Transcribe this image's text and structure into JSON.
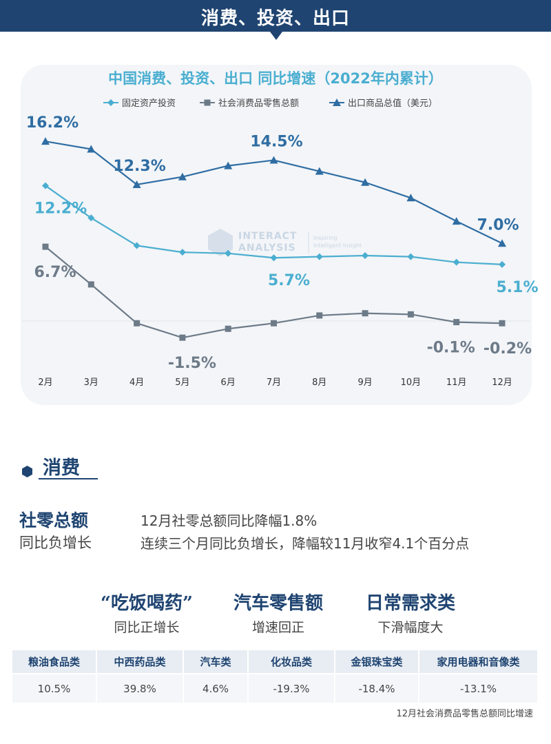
{
  "header": {
    "title": "消费、投资、出口"
  },
  "chart_data": {
    "type": "line",
    "title": "中国消费、投资、出口 同比增速（2022年内累计）",
    "categories": [
      "2月",
      "3月",
      "4月",
      "5月",
      "6月",
      "7月",
      "8月",
      "9月",
      "10月",
      "11月",
      "12月"
    ],
    "ylim": [
      -3,
      18
    ],
    "legend_position": "top",
    "grid": false,
    "series": [
      {
        "name": "固定资产投资",
        "color": "#4aaed0",
        "marker": "diamond",
        "values": [
          12.2,
          9.3,
          6.8,
          6.2,
          6.1,
          5.7,
          5.8,
          5.9,
          5.8,
          5.3,
          5.1
        ]
      },
      {
        "name": "社会消费品零售总额",
        "color": "#6d7a88",
        "marker": "square",
        "values": [
          6.7,
          3.3,
          -0.2,
          -1.5,
          -0.7,
          -0.2,
          0.5,
          0.7,
          0.6,
          -0.1,
          -0.2
        ]
      },
      {
        "name": "出口商品总值（美元）",
        "color": "#2f6da3",
        "marker": "triangle",
        "values": [
          16.2,
          15.5,
          12.3,
          13.0,
          14.0,
          14.5,
          13.5,
          12.5,
          11.1,
          9.0,
          7.0
        ]
      }
    ],
    "data_labels": [
      {
        "series": 2,
        "index": 0,
        "text": "16.2%"
      },
      {
        "series": 2,
        "index": 2,
        "text": "12.3%"
      },
      {
        "series": 2,
        "index": 5,
        "text": "14.5%"
      },
      {
        "series": 2,
        "index": 10,
        "text": "7.0%"
      },
      {
        "series": 0,
        "index": 0,
        "text": "12.2%"
      },
      {
        "series": 0,
        "index": 5,
        "text": "5.7%"
      },
      {
        "series": 0,
        "index": 10,
        "text": "5.1%"
      },
      {
        "series": 1,
        "index": 0,
        "text": "6.7%"
      },
      {
        "series": 1,
        "index": 3,
        "text": "-1.5%"
      },
      {
        "series": 1,
        "index": 9,
        "text": "-0.1%"
      },
      {
        "series": 1,
        "index": 10,
        "text": "-0.2%"
      }
    ],
    "watermark": {
      "line1": "INTERACT",
      "line2": "ANALYSIS",
      "tagline1": "Inspiring",
      "tagline2": "Intelligent Insight"
    }
  },
  "section": {
    "title": "消费"
  },
  "retail": {
    "heading": "社零总额",
    "subheading": "同比负增长",
    "note1": "12月社零总额同比降幅1.8%",
    "note2": "连续三个月同比负增长，降幅较11月收窄4.1个百分点"
  },
  "highlights": [
    {
      "title": "“吃饭喝药”",
      "sub": "同比正增长"
    },
    {
      "title": "汽车零售额",
      "sub": "增速回正"
    },
    {
      "title": "日常需求类",
      "sub": "下滑幅度大"
    }
  ],
  "table": {
    "headers": [
      "粮油食品类",
      "中西药品类",
      "汽车类",
      "化妆品类",
      "金银珠宝类",
      "家用电器和音像类"
    ],
    "values": [
      "10.5%",
      "39.8%",
      "4.6%",
      "-19.3%",
      "-18.4%",
      "-13.1%"
    ],
    "caption": "12月社会消费品零售总额同比增速"
  },
  "colors": {
    "brand": "#1f4471",
    "panel": "#f3f5f8"
  }
}
